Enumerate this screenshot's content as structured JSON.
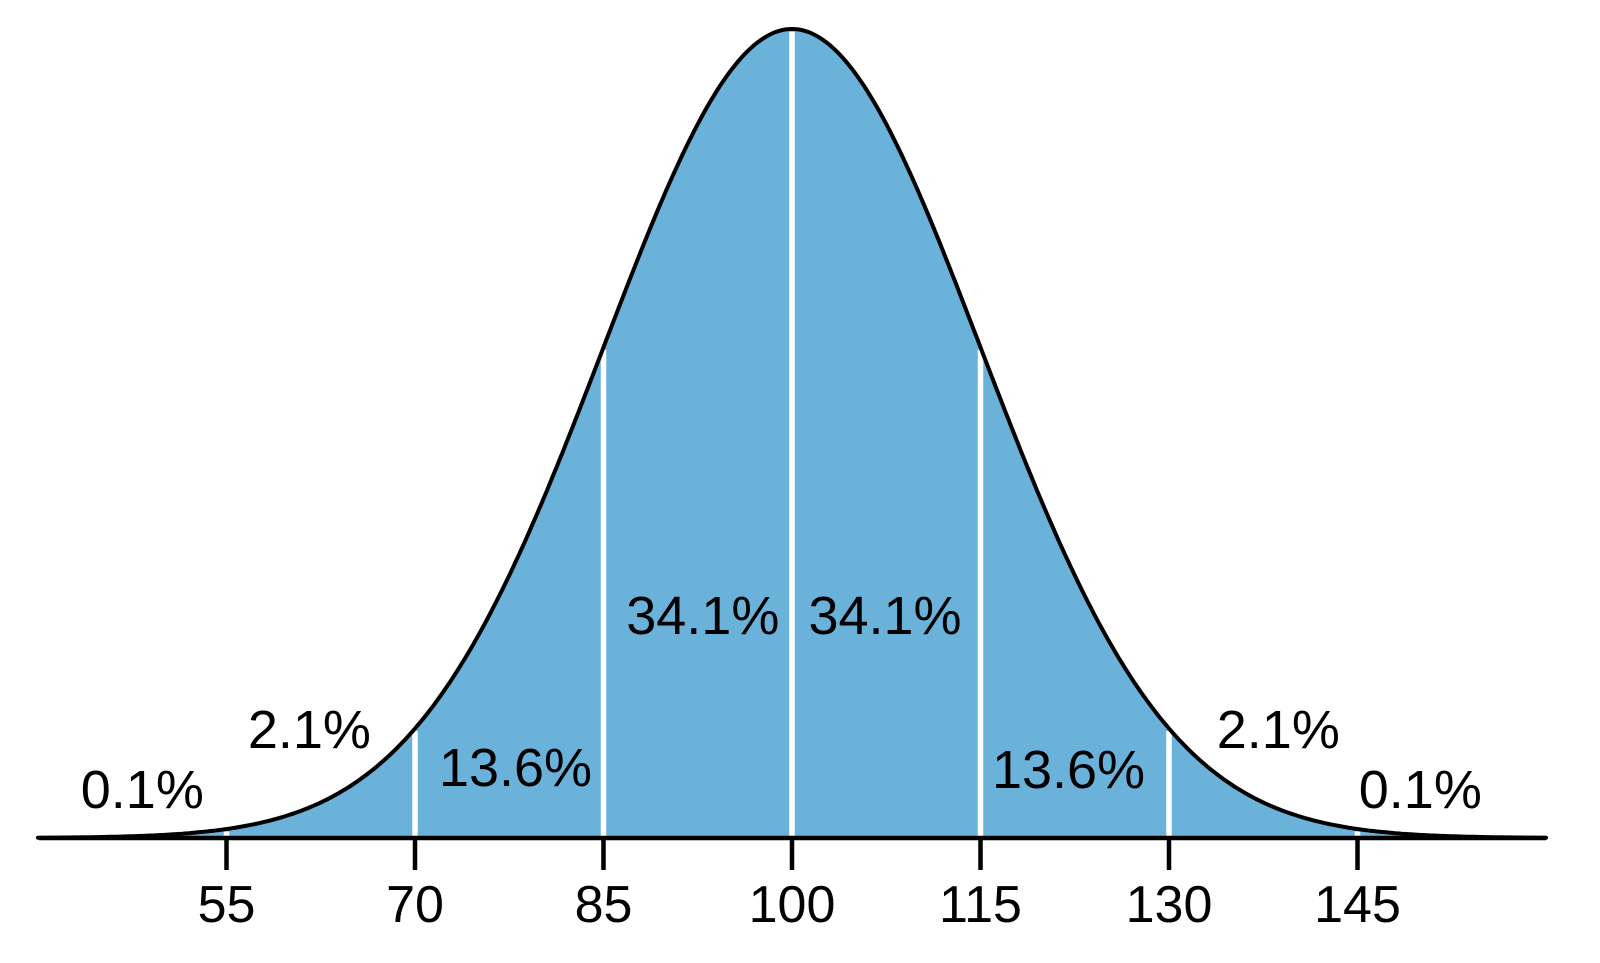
{
  "chart_data": {
    "type": "area",
    "title": "",
    "description": "Normal distribution curve divided into standard-deviation bands with percentage labels",
    "distribution": {
      "name": "normal",
      "mean": 100,
      "sd": 15
    },
    "x_range": [
      40,
      160
    ],
    "x_ticks": [
      55,
      70,
      85,
      100,
      115,
      130,
      145
    ],
    "divider_positions": [
      55,
      70,
      85,
      100,
      115,
      130,
      145
    ],
    "segment_labels": [
      {
        "text": "0.1%",
        "x": 48.3,
        "y_frac": 0.059
      },
      {
        "text": "2.1%",
        "x": 61.6,
        "y_frac": 0.134
      },
      {
        "text": "13.6%",
        "x": 78.0,
        "y_frac": 0.086
      },
      {
        "text": "34.1%",
        "x": 92.9,
        "y_frac": 0.274
      },
      {
        "text": "34.1%",
        "x": 107.4,
        "y_frac": 0.274
      },
      {
        "text": "13.6%",
        "x": 122.0,
        "y_frac": 0.084
      },
      {
        "text": "2.1%",
        "x": 138.7,
        "y_frac": 0.133
      },
      {
        "text": "0.1%",
        "x": 150.0,
        "y_frac": 0.059
      }
    ],
    "grid": false,
    "legend": false,
    "colors": {
      "fill": "#6BB2DB",
      "curve": "#000000",
      "divider": "#FFFFFF",
      "axis": "#000000",
      "background": "#FFFFFF"
    }
  }
}
